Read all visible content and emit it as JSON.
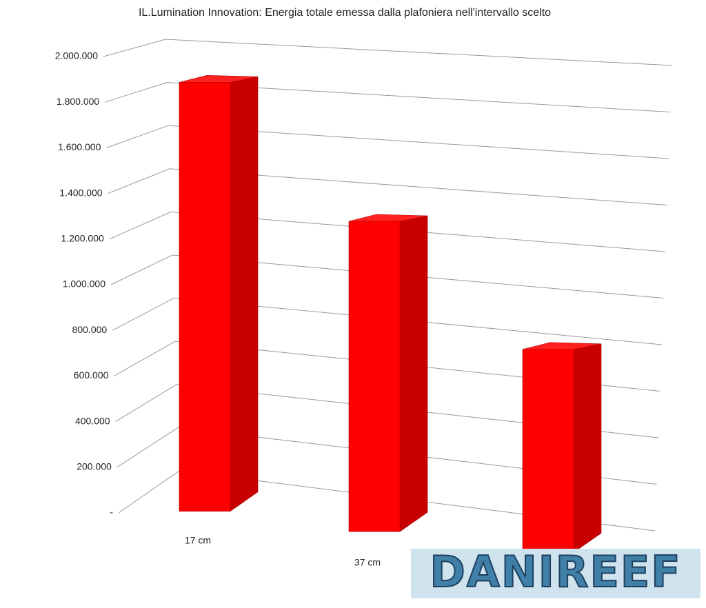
{
  "chart_data": {
    "type": "bar3d",
    "title": "IL.Lumination Innovation: Energia totale emessa dalla plafoniera nell'intervallo scelto",
    "categories": [
      "17 cm",
      "37 cm",
      null
    ],
    "values": [
      1880000,
      1360000,
      890000
    ],
    "color": "#ff0000",
    "ylim": [
      0,
      2000000
    ],
    "yticks": [
      {
        "value": 0,
        "label": "-"
      },
      {
        "value": 200000,
        "label": "200.000"
      },
      {
        "value": 400000,
        "label": "400.000"
      },
      {
        "value": 600000,
        "label": "600.000"
      },
      {
        "value": 800000,
        "label": "800.000"
      },
      {
        "value": 1000000,
        "label": "1.000.000"
      },
      {
        "value": 1200000,
        "label": "1.200.000"
      },
      {
        "value": 1400000,
        "label": "1.400.000"
      },
      {
        "value": 1600000,
        "label": "1.600.000"
      },
      {
        "value": 1800000,
        "label": "1.800.000"
      },
      {
        "value": 2000000,
        "label": "2.000.000"
      }
    ],
    "grid": true,
    "watermark": "DANIREEF"
  }
}
